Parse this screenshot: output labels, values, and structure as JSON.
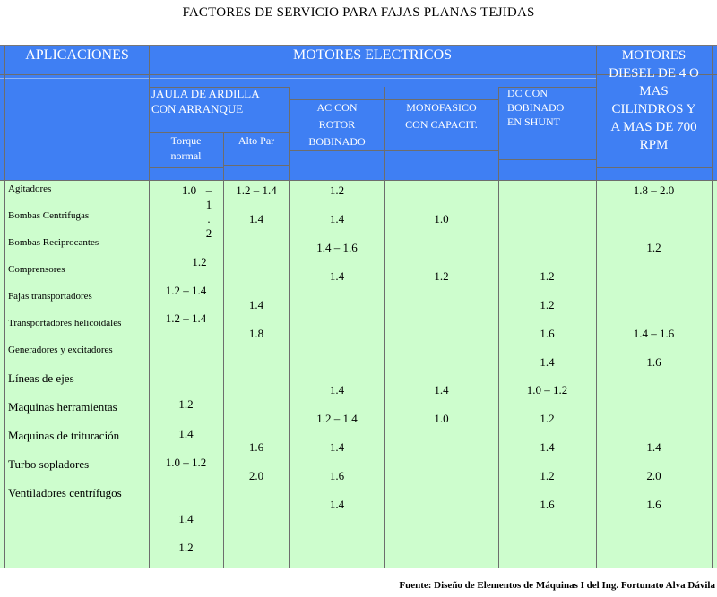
{
  "title": "FACTORES DE SERVICIO PARA FAJAS PLANAS TEJIDAS",
  "header": {
    "applications": "APLICACIONES",
    "electric_motors": "MOTORES ELECTRICOS",
    "diesel_lines": [
      "MOTORES",
      "DIESEL DE 4 O",
      "MAS",
      "CILINDROS Y",
      "A MAS DE 700",
      "RPM"
    ],
    "squirrel_cage_lines": [
      "JAULA DE ARDILLA",
      "CON ARRANQUE"
    ],
    "torque_normal_lines": [
      "Torque",
      "normal"
    ],
    "alto_par": "Alto Par",
    "ac_lines": [
      "AC CON",
      "ROTOR",
      "BOBINADO"
    ],
    "mono_lines": [
      "MONOFASICO",
      "CON CAPACIT."
    ],
    "dc_lines": [
      "DC CON",
      "BOBINADO",
      "EN SHUNT"
    ]
  },
  "applications": [
    "Agitadores",
    "Bombas Centrifugas",
    "Bombas Reciprocantes",
    "Comprensores",
    "Fajas transportadores",
    "Transportadores helicoidales",
    "Generadores y excitadores",
    "Líneas de ejes",
    "Maquinas herramientas",
    "Maquinas de trituración",
    "Turbo sopladores",
    "Ventiladores centrífugos"
  ],
  "columns": {
    "torque_normal": [
      [
        "1.0",
        "–"
      ],
      [
        "1"
      ],
      [
        "."
      ],
      [
        "2"
      ],
      [
        "1.2"
      ],
      [
        "1.2 – 1.4"
      ],
      [
        "1.2 – 1.4"
      ],
      [
        "1.2"
      ],
      [
        "1.4"
      ],
      [
        "1.0 – 1.2"
      ],
      [
        "1.4"
      ],
      [
        "1.2"
      ]
    ],
    "alto_par": [
      "1.2 – 1.4",
      "1.4",
      "1.4",
      "1.8",
      "1.6",
      "2.0"
    ],
    "ac_rotor": [
      "1.2",
      "1.4",
      "1.4 – 1.6",
      "1.4",
      "1.4",
      "1.2 – 1.4",
      "1.4",
      "1.6",
      "1.4"
    ],
    "monofasico": [
      "1.0",
      "1.2",
      "1.4",
      "1.0"
    ],
    "dc_shunt": [
      "1.2",
      "1.2",
      "1.6",
      "1.4",
      "1.0 – 1.2",
      "1.2",
      "1.4",
      "1.2",
      "1.6"
    ],
    "diesel": [
      "1.8 – 2.0",
      "1.2",
      "1.4 – 1.6",
      "1.6",
      "1.4",
      "2.0",
      "1.6"
    ]
  },
  "source": "Fuente: Diseño de Elementos de Máquinas I del Ing. Fortunato Alva Dávila",
  "colors": {
    "header_blue": "#3f7ff3",
    "body_green": "#cdfdcd"
  }
}
